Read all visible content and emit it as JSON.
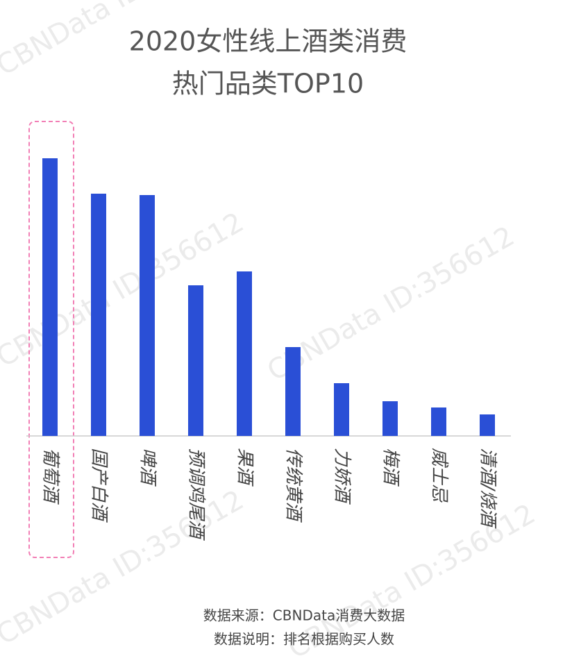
{
  "chart_data": {
    "type": "bar",
    "title": "2020女性线上酒类消费",
    "subtitle": "热门品类TOP10",
    "categories": [
      "葡萄酒",
      "国产白酒",
      "啤酒",
      "预调鸡尾酒",
      "果酒",
      "传统黄酒",
      "力娇酒",
      "梅酒",
      "威士忌",
      "清酒/烧酒"
    ],
    "values": [
      400,
      349,
      347,
      217,
      237,
      128,
      76,
      50,
      41,
      31
    ],
    "color": "#2a4fd6",
    "ylim": [
      0,
      420
    ],
    "source": "数据来源：CBNData消费大数据",
    "note": "数据说明：排名根据购买人数",
    "watermark": "CBNData ID:356612"
  }
}
